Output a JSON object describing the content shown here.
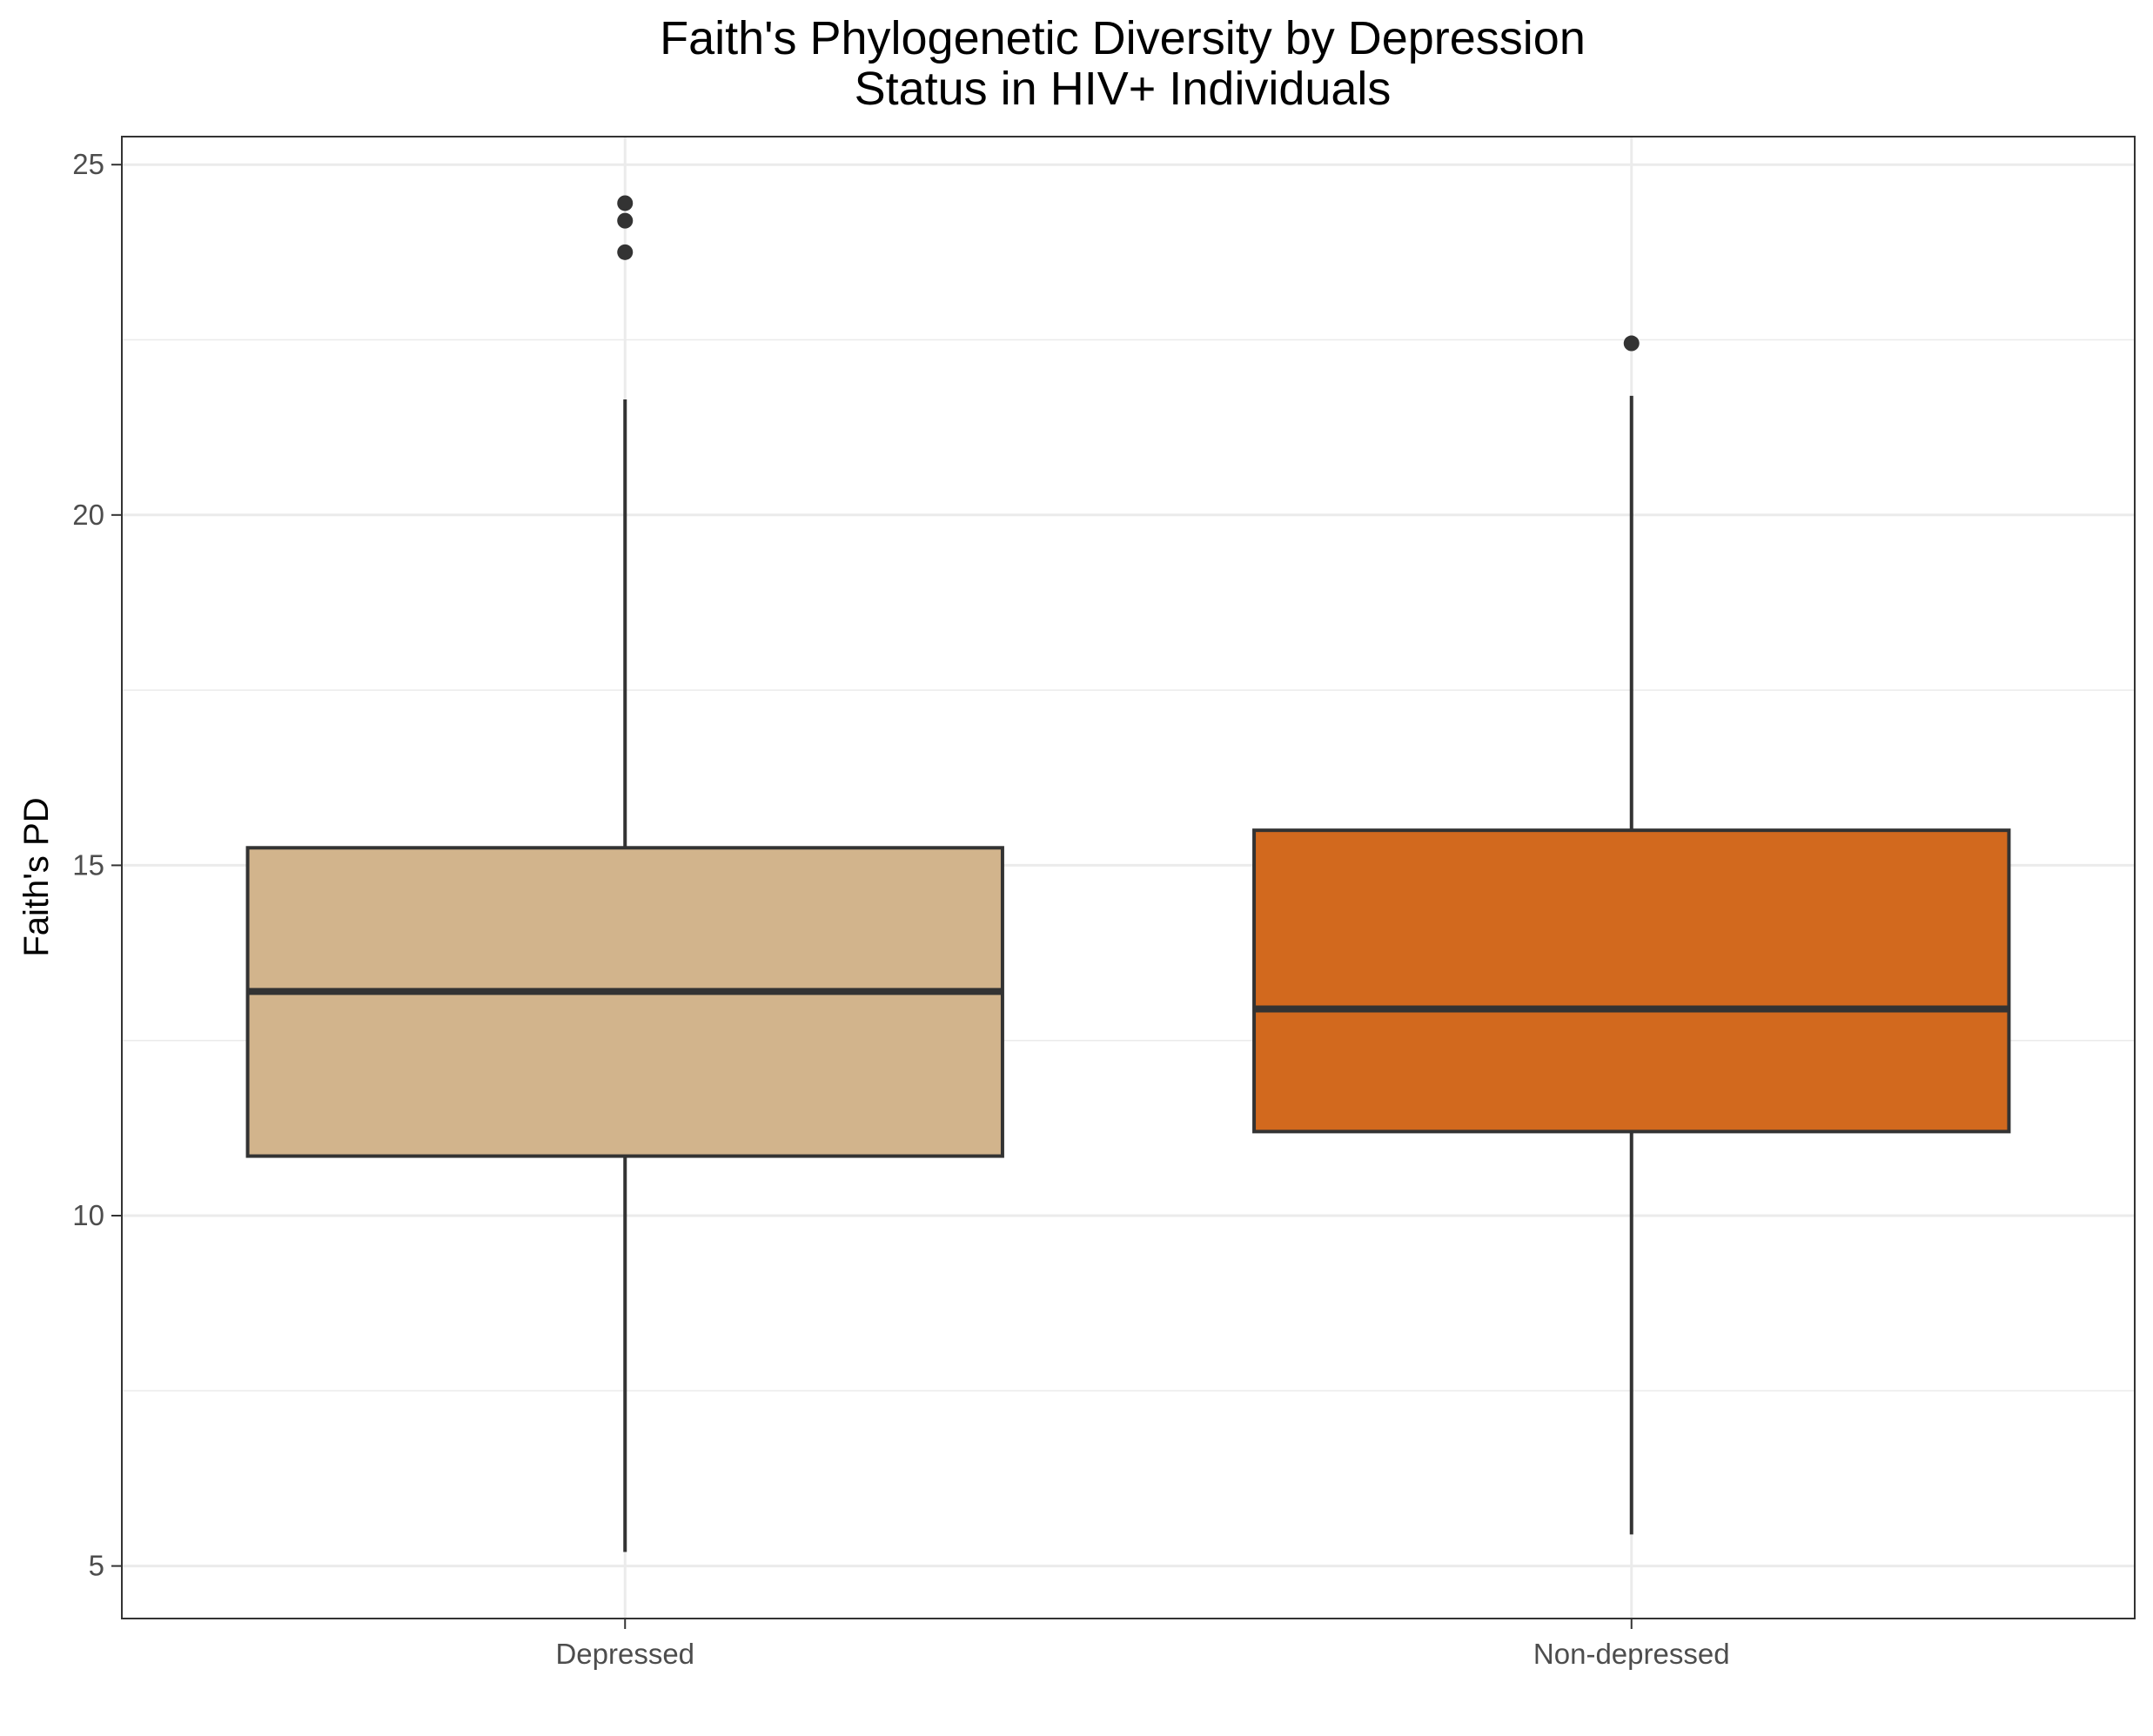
{
  "chart_data": {
    "type": "boxplot",
    "title": "Faith's Phylogenetic Diversity by Depression",
    "subtitle": "Status in HIV+ Individuals",
    "xlabel": "",
    "ylabel": "Faith's PD",
    "categories": [
      "Depressed",
      "Non-depressed"
    ],
    "ylim": [
      4.25,
      25.4
    ],
    "y_ticks": [
      5,
      10,
      15,
      20,
      25
    ],
    "grid": true,
    "colors": {
      "Depressed": "#D2B48C",
      "Non-depressed": "#D2691E"
    },
    "boxes": [
      {
        "category": "Depressed",
        "whisker_low": 5.2,
        "q1": 10.85,
        "median": 13.2,
        "q3": 15.25,
        "whisker_high": 21.65,
        "outliers": [
          23.75,
          24.2,
          24.45
        ]
      },
      {
        "category": "Non-depressed",
        "whisker_low": 5.45,
        "q1": 11.2,
        "median": 12.95,
        "q3": 15.5,
        "whisker_high": 21.7,
        "outliers": [
          22.45
        ]
      }
    ]
  }
}
